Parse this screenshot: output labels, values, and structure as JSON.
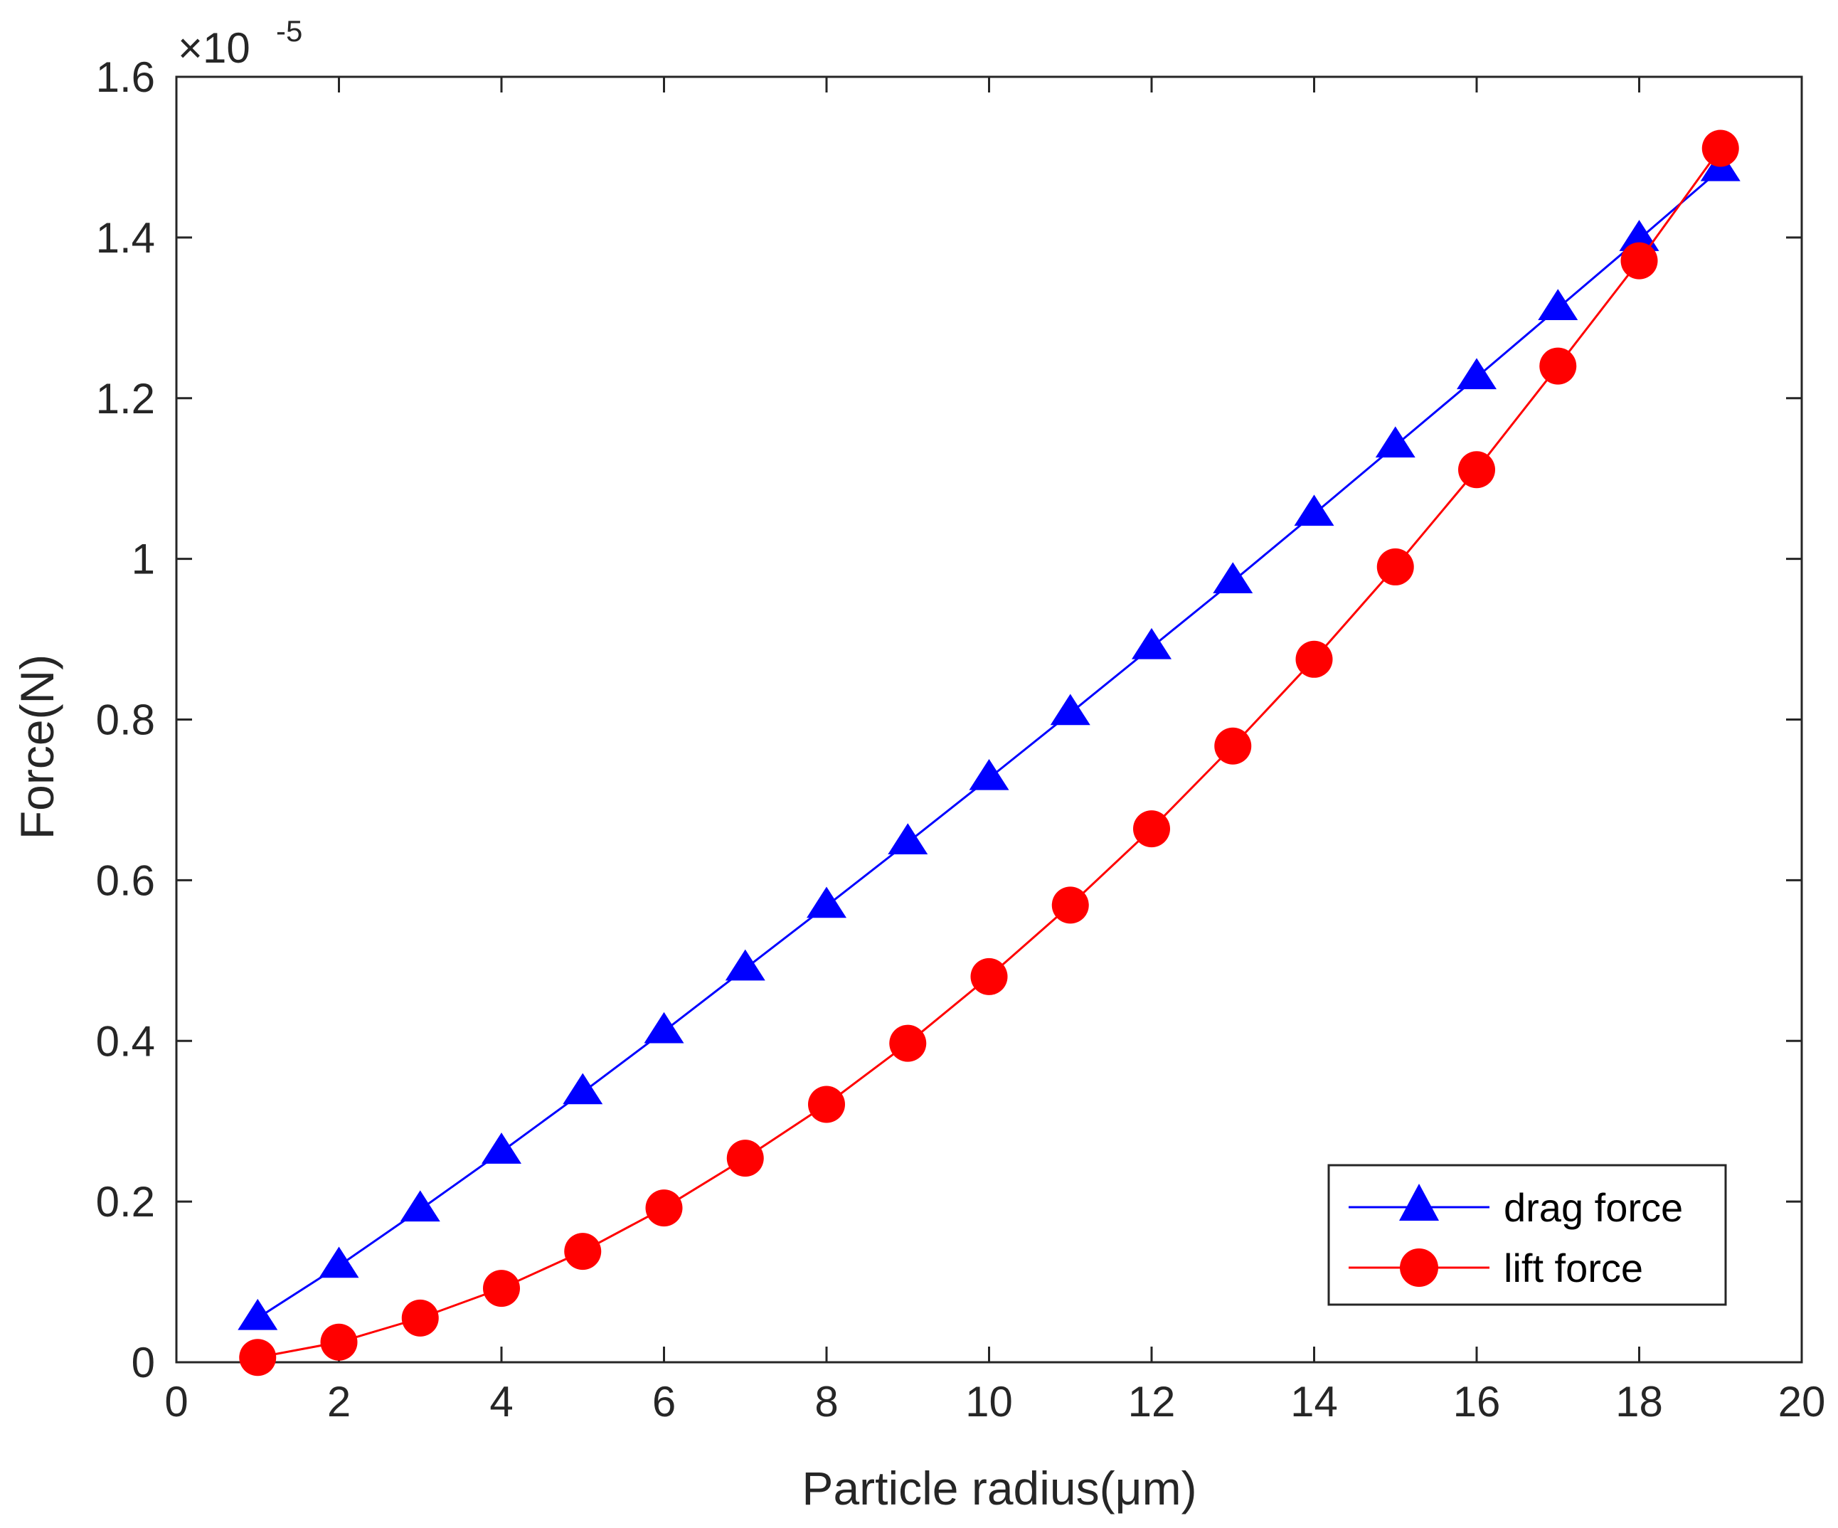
{
  "chart_data": {
    "type": "line",
    "title": "",
    "xlabel": "Particle radius(μm)",
    "ylabel": "Force(N)",
    "y_scale_label": {
      "base": "×10",
      "exponent": "-5"
    },
    "xlim": [
      0,
      20
    ],
    "ylim": [
      0,
      1.6
    ],
    "xticks": [
      0,
      2,
      4,
      6,
      8,
      10,
      12,
      14,
      16,
      18,
      20
    ],
    "yticks": [
      0,
      0.2,
      0.4,
      0.6,
      0.8,
      1.0,
      1.2,
      1.4,
      1.6
    ],
    "xtick_labels": [
      "0",
      "2",
      "4",
      "6",
      "8",
      "10",
      "12",
      "14",
      "16",
      "18",
      "20"
    ],
    "ytick_labels": [
      "0",
      "0.2",
      "0.4",
      "0.6",
      "0.8",
      "1",
      "1.2",
      "1.4",
      "1.6"
    ],
    "grid": false,
    "legend_position": "bottom-right",
    "x": [
      1,
      2,
      3,
      4,
      5,
      6,
      7,
      8,
      9,
      10,
      11,
      12,
      13,
      14,
      15,
      16,
      17,
      18,
      19
    ],
    "series": [
      {
        "name": "drag force",
        "color": "#0000FF",
        "marker": "triangle",
        "values": [
          0.055,
          0.12,
          0.19,
          0.262,
          0.336,
          0.412,
          0.49,
          0.568,
          0.647,
          0.727,
          0.808,
          0.89,
          0.972,
          1.056,
          1.141,
          1.226,
          1.312,
          1.398,
          1.485
        ]
      },
      {
        "name": "lift force",
        "color": "#FF0000",
        "marker": "circle",
        "values": [
          0.006,
          0.025,
          0.055,
          0.092,
          0.138,
          0.192,
          0.254,
          0.321,
          0.397,
          0.48,
          0.569,
          0.664,
          0.767,
          0.875,
          0.99,
          1.111,
          1.24,
          1.371,
          1.511
        ]
      }
    ]
  }
}
